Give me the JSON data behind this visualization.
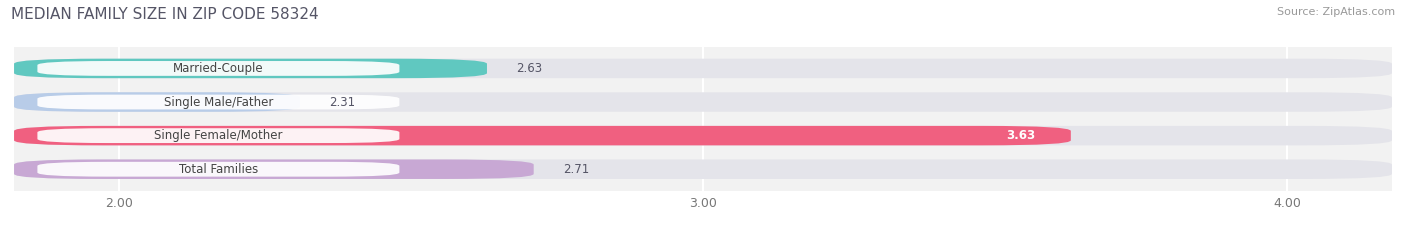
{
  "title": "MEDIAN FAMILY SIZE IN ZIP CODE 58324",
  "source": "Source: ZipAtlas.com",
  "categories": [
    "Married-Couple",
    "Single Male/Father",
    "Single Female/Mother",
    "Total Families"
  ],
  "values": [
    2.63,
    2.31,
    3.63,
    2.71
  ],
  "bar_colors": [
    "#60c8c0",
    "#b8cce8",
    "#f06080",
    "#c8a8d4"
  ],
  "background_color": "#f2f2f2",
  "bar_bg_color": "#e4e4ea",
  "label_bg_color": "#ffffff",
  "xlim": [
    1.82,
    4.18
  ],
  "xticks": [
    2.0,
    3.0,
    4.0
  ],
  "label_value_inside": [
    false,
    false,
    true,
    false
  ],
  "figsize": [
    14.06,
    2.33
  ],
  "title_color": "#555566",
  "source_color": "#999999",
  "value_color": "#555566",
  "value_inside_color": "#ffffff"
}
